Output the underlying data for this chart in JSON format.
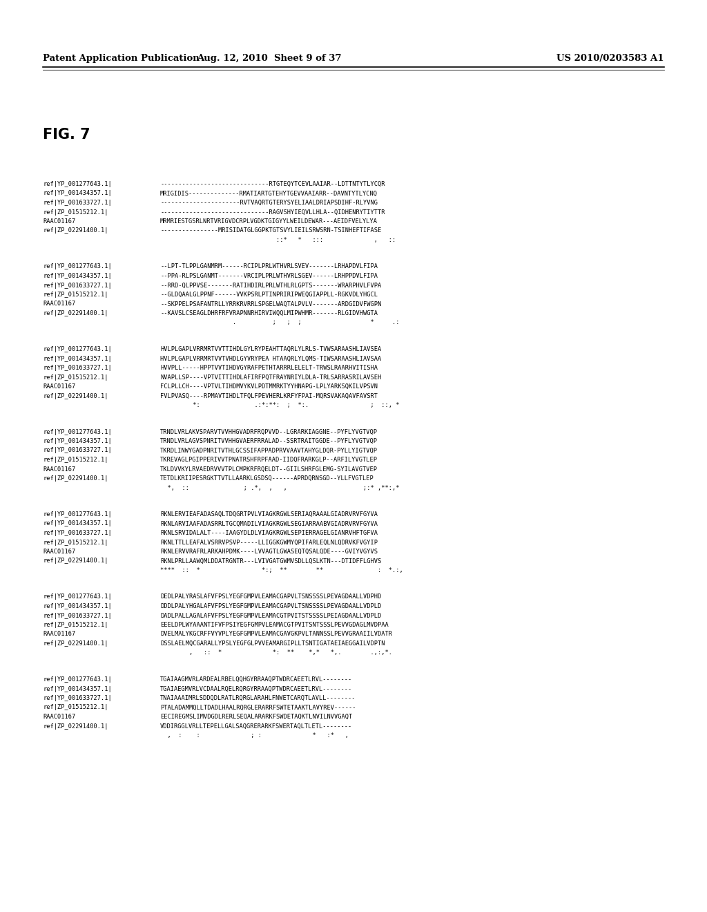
{
  "header_left": "Patent Application Publication",
  "header_center": "Aug. 12, 2010  Sheet 9 of 37",
  "header_right": "US 2010/0203583 A1",
  "fig_label": "FIG. 7",
  "background_color": "#ffffff",
  "text_color": "#000000",
  "alignment_blocks": [
    {
      "rows": [
        [
          "ref|YP_001277643.1|",
          "------------------------------RTGTEQYTCEVLAAIAR--LDTTNTYTLYCQR"
        ],
        [
          "ref|YP_001434357.1|",
          "MRIGIDIS--------------RMATIARTGTEHYTGEVVAAIARR--DAVNTYTLYCNQ"
        ],
        [
          "ref|YP_001633727.1|",
          "----------------------RVTVAQRTGTERYSYELIAALDRIAPSDIHF-RLYVNG"
        ],
        [
          "ref|ZP_01515212.1|",
          "------------------------------RAGVSHYIEQVLLHLA--QIDHENRYTIYTTR"
        ],
        [
          "RAAC01167",
          "MRMRIESTGSRLNRTVRIGVDCRPLVGDKTGIGYYLWEILDEWAR---AEIDFVELYLYA"
        ],
        [
          "ref|ZP_02291400.1|",
          "----------------MRISIDATGLGGPKTGTSVYLIEILSRWSRN-TSINHEFTIFASE"
        ],
        [
          "",
          "                                ::*   *   :::              ,   ::"
        ]
      ]
    },
    {
      "rows": [
        [
          "ref|YP_001277643.1|",
          "--LPT-TLPPLGANMRM------RCIPLPRLWTHVRLSVEV-------LRHAPDVLFIPA"
        ],
        [
          "ref|YP_001434357.1|",
          "--PPA-RLPSLGANMT-------VRCIPLPRLWTHVRLSGEV------LRHPPDVLFIPA"
        ],
        [
          "ref|YP_001633727.1|",
          "--RRD-QLPPVSE-------RATIHDIRLPRLWTHLRLGPTS-------WRARPHVLFVPA"
        ],
        [
          "ref|ZP_01515212.1|",
          "--GLDQAALGLPPNF------VVKPSRLPTINPRIRIPWEQGIAPPLL-RGKVDLYHGCL"
        ],
        [
          "RAAC01167",
          "--SKPPELPSAFANTRLLYRRKRVRRLSPGELWAQTALPVLV-------ARDGIDVFWGPN"
        ],
        [
          "ref|ZP_02291400.1|",
          "--KAVSLCSEAGLDHRFRFVRAPNNRHIRVIWQQLMIPWHMR-------RLGIDVHWGTA"
        ],
        [
          "",
          "                    .          ;   ;  ;                   *     .:"
        ]
      ]
    },
    {
      "rows": [
        [
          "ref|YP_001277643.1|",
          "HVLPLGAPLVRRMRTVVTTIHDLGYLRYPEAHTTAQRLYLRLS-TVWSARAASHLIAVSEA"
        ],
        [
          "ref|YP_001434357.1|",
          "HVLPLGAPLVRRMRTVVTVHDLGYVRYPEA HTAAQRLYLQMS-TIWSARAASHLIAVSAA"
        ],
        [
          "ref|YP_001633727.1|",
          "HVVPLL-----HPPTVVTIHDVGYRAFPETHTARRRLELELT-TRWSLRAARHVITISHA"
        ],
        [
          "ref|ZP_01515212.1|",
          "NVAPLLSP----VPTVITTIHDLAFIRFPQTFRAYNRIYLDLA-TRLSARRASRILAVSEH"
        ],
        [
          "RAAC01167",
          "FCLPLLCH----VPTVLTIHDMVYKVLPDTMMRKTYYHNAPG-LPLYARKSQKILVPSVN"
        ],
        [
          "ref|ZP_02291400.1|",
          "FVLPVASQ----RPMAVTIHDLTFQLFPEVHERLKRFYFPAI-MQRSVAKAQAVFAVSRT"
        ],
        [
          "",
          "         *:               .:*:**:  ;  *:.                 ;  ::, *"
        ]
      ]
    },
    {
      "rows": [
        [
          "ref|YP_001277643.1|",
          "TRNDLVRLAKVSPARVTVVHHGVADRFRQPVVD--LGRARKIAGGNE--PYFLYVGTVQP"
        ],
        [
          "ref|YP_001434357.1|",
          "TRNDLVRLAGVSPNRITVVHHGVAERFRRALAD--SSRTRAITGGDE--PYFLYVGTVQP"
        ],
        [
          "ref|YP_001633727.1|",
          "TKRDLINWYGADPNRITVTHLGCSSIFAPPADPRVVAAVTAHYGLDQR-PYLLYIGTVQP"
        ],
        [
          "ref|ZP_01515212.1|",
          "TKREVAGLPGIPPERIVVTPNATRSHFRPFAAD-IIDQFRARKGLP--ARFILYVGTLEP"
        ],
        [
          "RAAC01167",
          "TKLDVVKYLRVAEDRVVVTPLCMPKRFRQELDT--GIILSHRFGLEMG-SYILAVGTVEP"
        ],
        [
          "ref|ZP_02291400.1|",
          "TETDLKRIIPESRGKTTVTLLAARKLGSDSQ------APRDQRNSGD--YLLFVGTLEP"
        ],
        [
          "",
          "  *,  ::               ; .*,  ,   ,                     ;:* ,**:,*"
        ]
      ]
    },
    {
      "rows": [
        [
          "ref|YP_001277643.1|",
          "RKNLERVIEAFADASAQLTDQGRTPVLVIAGKRGWLSERIAQRAAALGIADRVRVFGYVA"
        ],
        [
          "ref|YP_001434357.1|",
          "RKNLARVIAAFADASRRLTGCQMADILVIAGKRGWLSEGIARRAABVGIADRVRVFGYVA"
        ],
        [
          "ref|YP_001633727.1|",
          "RKNLSRVIDALALT----IAAGYDLDLVIAGKRGWLSEPIERRAGELGIANRVHFTGFVA"
        ],
        [
          "ref|ZP_01515212.1|",
          "RKNLTTLLEAFALVSRRVPSVP-----LLIGGKGWMYQPIFARLEQLNLQDRVKFVGYIP"
        ],
        [
          "RAAC01167",
          "RKNLERVVRAFRLARKAHPDMK----LVVAGTLGWASEQTQSALQDE----GVIYVGYVS"
        ],
        [
          "ref|ZP_02291400.1|",
          "RKNLPRLLAAWQMLDDATRGNTR---LVIVGATGWMVSDLLQSLKTN---DTIDFFLGHVS"
        ],
        [
          "",
          "****  ::  *                 *:;  **        **               :  *.:,"
        ]
      ]
    },
    {
      "rows": [
        [
          "ref|YP_001277643.1|",
          "DEDLPALYRASLAFVFPSLYEGFGMPVLEAMACGAPVLTSNSSSSLPEVAGDAALLVDPHD"
        ],
        [
          "ref|YP_001434357.1|",
          "DDDLPALYHGALAFVFPSLYEGFGMPVLEAMACGAPVLTSNSSSSLPEVAGDAALLVDPLD"
        ],
        [
          "ref|YP_001633727.1|",
          "DADLPALLAGALAFVFPSLYEGFGMPVLEAMACGTPVITSTSSSSLPEIAGDAALLVDPLD"
        ],
        [
          "ref|ZP_01515212.1|",
          "EEELDPLWYAAANTIFVFPSIYEGFGMPVLEAMACGTPVITSNTSSSLPEVVGDAGLMVDPAA"
        ],
        [
          "RAAC01167",
          "DVELMALYKGCRFFVYVPLYEGFGMPVLEAMACGAVGKPVLTANNSSLPEVVGRAAIILVDATR"
        ],
        [
          "ref|ZP_02291400.1|",
          "DSSLAELMQCGARALLYPSLYEGFGLPVVEAMARGIPLLTSNTIGATAEIAEGGAILVDPTN"
        ],
        [
          "",
          "        ,   ::  *              *:  **    *,*   *,.        .,:,*."
        ]
      ]
    },
    {
      "rows": [
        [
          "ref|YP_001277643.1|",
          "TGAIAAGMVRLARDEALRBELQQHGYRRAAQPTWDRCAEETLRVL--------"
        ],
        [
          "ref|YP_001434357.1|",
          "TGAIAEGMVRLVCDAALRQELRQRGYRRAAQPTWDRCAEETLRVL--------"
        ],
        [
          "ref|YP_001633727.1|",
          "TNAIAAAIMRLSDDQDLRATLRQRGLARAHLFNWETCARQTLAVLL--------"
        ],
        [
          "ref|ZP_01515212.1|",
          "PTALADAMMQLLTDADLHAALRQRGLERARRFSWTETAAKTLAVYREV------"
        ],
        [
          "RAAC01167",
          "EECIREGMSLIMVDGDLRERLSEQALARARKFSWDETAQKTLNVILNVVGAQT"
        ],
        [
          "ref|ZP_02291400.1|",
          "VDDIRGGLVRLLTEPELLGALSAQGRERARKFSWERTAQLTLETL--------"
        ],
        [
          "",
          "  ,  :    :              ; :              *   :*   ,"
        ]
      ]
    }
  ]
}
